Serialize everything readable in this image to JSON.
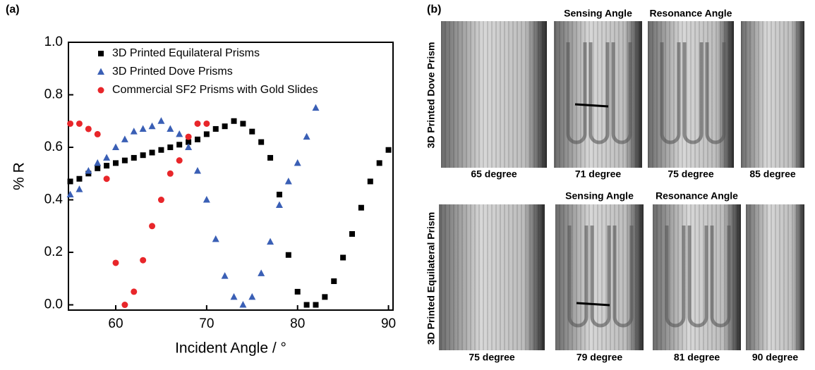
{
  "panel_a_label": "(a)",
  "chart_data": {
    "type": "scatter",
    "x_label": "Incident Angle / °",
    "y_label": "% R",
    "xlim": [
      54.8,
      90.5
    ],
    "ylim": [
      -0.02,
      1.0
    ],
    "xticks": [
      60,
      70,
      80,
      90
    ],
    "yticks": [
      {
        "value": 0,
        "label": "0.0"
      },
      {
        "value": 0.2,
        "label": "0.2"
      },
      {
        "value": 0.4,
        "label": "0.4"
      },
      {
        "value": 0.6,
        "label": "0.6"
      },
      {
        "value": 0.8,
        "label": "0.8"
      },
      {
        "value": 1,
        "label": "1.0"
      }
    ],
    "grid": false,
    "legend": "upper center",
    "series": [
      {
        "name": "3D Printed Equilateral Prisms",
        "color": "#000000",
        "marker": "square",
        "x": [
          55,
          56,
          57,
          58,
          59,
          60,
          61,
          62,
          63,
          64,
          65,
          66,
          67,
          68,
          69,
          70,
          71,
          72,
          73,
          74,
          75,
          76,
          77,
          78,
          79,
          80,
          81,
          82,
          83,
          84,
          85,
          86,
          87,
          88,
          89,
          90
        ],
        "values": [
          0.47,
          0.48,
          0.5,
          0.52,
          0.53,
          0.54,
          0.55,
          0.56,
          0.57,
          0.58,
          0.59,
          0.6,
          0.61,
          0.62,
          0.63,
          0.65,
          0.67,
          0.68,
          0.7,
          0.69,
          0.66,
          0.62,
          0.56,
          0.42,
          0.19,
          0.05,
          0,
          0,
          0.03,
          0.09,
          0.18,
          0.27,
          0.37,
          0.47,
          0.54,
          0.59
        ]
      },
      {
        "name": "3D Printed Dove Prisms",
        "color": "#3a5fb5",
        "marker": "triangle",
        "x": [
          55,
          56,
          57,
          58,
          59,
          60,
          61,
          62,
          63,
          64,
          65,
          66,
          67,
          68,
          69,
          70,
          71,
          72,
          73,
          74,
          75,
          76,
          77,
          78,
          79,
          80,
          81,
          82
        ],
        "values": [
          0.42,
          0.44,
          0.51,
          0.54,
          0.56,
          0.6,
          0.63,
          0.66,
          0.67,
          0.68,
          0.7,
          0.67,
          0.65,
          0.6,
          0.51,
          0.4,
          0.25,
          0.11,
          0.03,
          0,
          0.03,
          0.12,
          0.24,
          0.38,
          0.47,
          0.54,
          0.64,
          0.75
        ]
      },
      {
        "name": "Commercial SF2 Prisms with Gold Slides",
        "color": "#e8262a",
        "marker": "circle",
        "x": [
          55,
          56,
          57,
          58,
          59,
          60,
          61,
          62,
          63,
          64,
          65,
          66,
          67,
          68,
          69,
          70
        ],
        "values": [
          0.69,
          0.69,
          0.67,
          0.65,
          0.48,
          0.16,
          0,
          0.05,
          0.17,
          0.3,
          0.4,
          0.5,
          0.55,
          0.64,
          0.69,
          0.69
        ]
      }
    ]
  },
  "panel_b": {
    "label": "(b)",
    "rows": [
      {
        "title": "3D Printed Dove Prism",
        "headers": [
          "Sensing Angle",
          "Resonance Angle"
        ],
        "captions": [
          "65 degree",
          "71 degree",
          "75 degree",
          "85 degree"
        ]
      },
      {
        "title": "3D Printed Equilateral Prism",
        "headers": [
          "Sensing Angle",
          "Resonance Angle"
        ],
        "captions": [
          "75 degree",
          "79 degree",
          "81 degree",
          "90 degree"
        ]
      }
    ]
  }
}
